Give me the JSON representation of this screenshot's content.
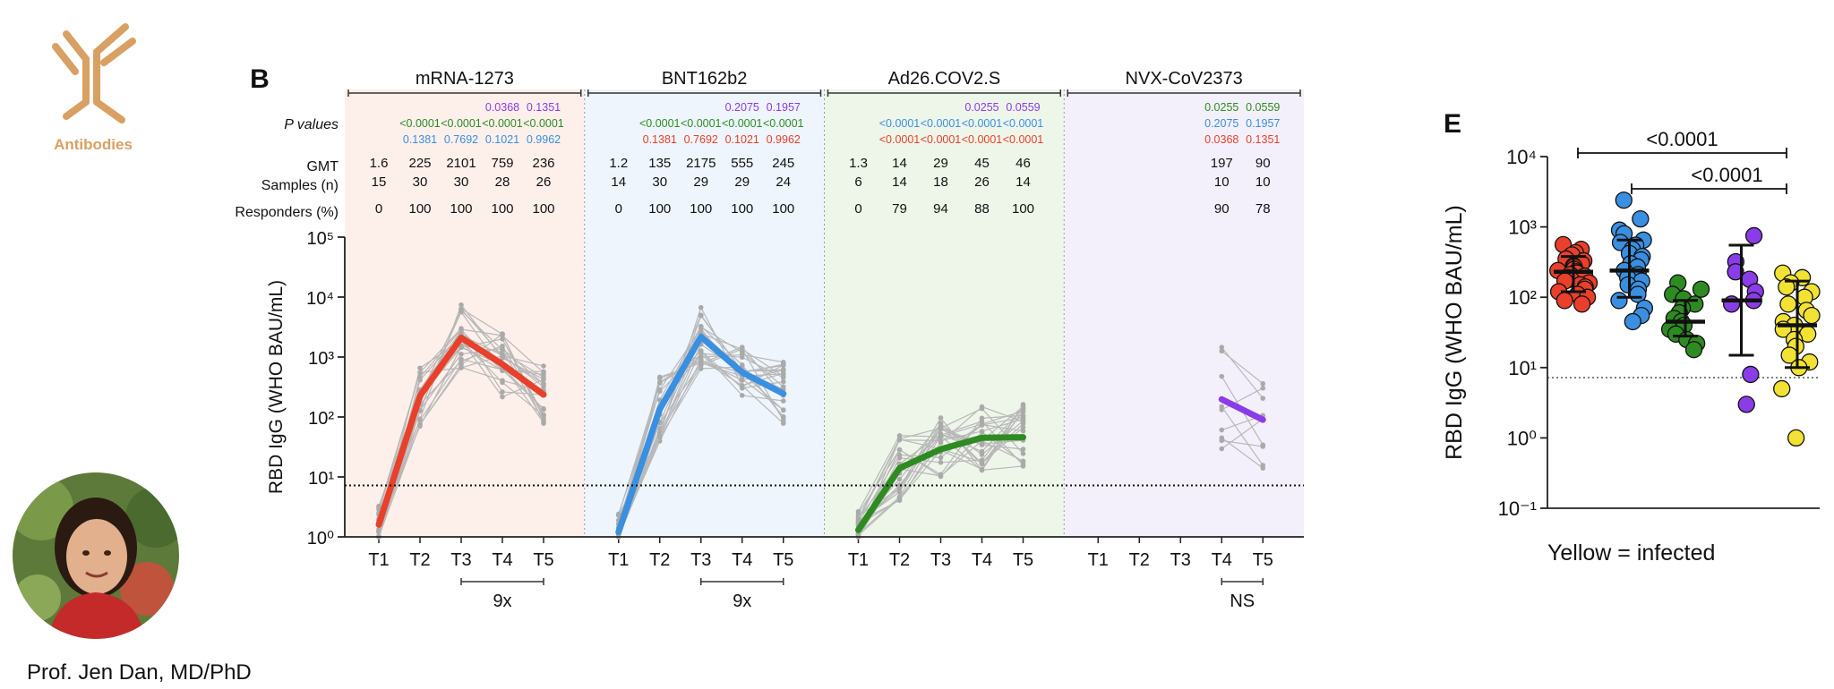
{
  "branding": {
    "logo_icon": "antibody-icon",
    "logo_label": "Antibodies",
    "logo_color": "#d8a063",
    "person_name": "Prof. Jen Dan, MD/PhD"
  },
  "chart_data": [
    {
      "type": "line",
      "panel_label": "B",
      "ylabel": "RBD IgG (WHO BAU/mL)",
      "yscale": "log",
      "ylim": [
        1,
        100000
      ],
      "ytick_labels": [
        "10⁰",
        "10¹",
        "10²",
        "10³",
        "10⁴",
        "10⁵"
      ],
      "threshold": 7.2,
      "row_labels": [
        "P values",
        "GMT",
        "Samples (n)",
        "Responders (%)"
      ],
      "individual_line_color": "#b8b8b8",
      "groups": [
        {
          "name": "mRNA-1273",
          "color": "#e8402a",
          "bg_color": "#fdf0eb",
          "timepoints": [
            "T1",
            "T2",
            "T3",
            "T4",
            "T5"
          ],
          "gmt_display": [
            "1.6",
            "225",
            "2101",
            "759",
            "236"
          ],
          "gmt": [
            1.6,
            225,
            2101,
            759,
            236
          ],
          "samples": [
            "15",
            "30",
            "30",
            "28",
            "26"
          ],
          "responders": [
            "0",
            "100",
            "100",
            "100",
            "100"
          ],
          "p_values": [
            {
              "color": "#8a3ce8",
              "values": [
                "",
                "",
                "",
                "0.0368",
                "0.1351"
              ]
            },
            {
              "color": "#2e8b22",
              "values": [
                "",
                "<0.0001",
                "<0.0001",
                "<0.0001",
                "<0.0001"
              ]
            },
            {
              "color": "#3a8fe0",
              "values": [
                "",
                "0.1381",
                "0.7692",
                "0.1021",
                "0.9962"
              ]
            }
          ],
          "fold_change": {
            "label": "9x",
            "from": "T3",
            "to": "T5"
          }
        },
        {
          "name": "BNT162b2",
          "color": "#3a8fe0",
          "bg_color": "#eef5fc",
          "timepoints": [
            "T1",
            "T2",
            "T3",
            "T4",
            "T5"
          ],
          "gmt_display": [
            "1.2",
            "135",
            "2175",
            "555",
            "245"
          ],
          "gmt": [
            1.2,
            135,
            2175,
            555,
            245
          ],
          "samples": [
            "14",
            "30",
            "29",
            "29",
            "24"
          ],
          "responders": [
            "0",
            "100",
            "100",
            "100",
            "100"
          ],
          "p_values": [
            {
              "color": "#8a3ce8",
              "values": [
                "",
                "",
                "",
                "0.2075",
                "0.1957"
              ]
            },
            {
              "color": "#2e8b22",
              "values": [
                "",
                "<0.0001",
                "<0.0001",
                "<0.0001",
                "<0.0001"
              ]
            },
            {
              "color": "#e8402a",
              "values": [
                "",
                "0.1381",
                "0.7692",
                "0.1021",
                "0.9962"
              ]
            }
          ],
          "fold_change": {
            "label": "9x",
            "from": "T3",
            "to": "T5"
          }
        },
        {
          "name": "Ad26.COV2.S",
          "color": "#2e8b22",
          "bg_color": "#eef6ea",
          "timepoints": [
            "T1",
            "T2",
            "T3",
            "T4",
            "T5"
          ],
          "gmt_display": [
            "1.3",
            "14",
            "29",
            "45",
            "46"
          ],
          "gmt": [
            1.3,
            14,
            29,
            45,
            46
          ],
          "samples": [
            "6",
            "14",
            "18",
            "26",
            "14"
          ],
          "responders": [
            "0",
            "79",
            "94",
            "88",
            "100"
          ],
          "p_values": [
            {
              "color": "#8a3ce8",
              "values": [
                "",
                "",
                "",
                "0.0255",
                "0.0559"
              ]
            },
            {
              "color": "#3a8fe0",
              "values": [
                "",
                "<0.0001",
                "<0.0001",
                "<0.0001",
                "<0.0001"
              ]
            },
            {
              "color": "#e8402a",
              "values": [
                "",
                "<0.0001",
                "<0.0001",
                "<0.0001",
                "<0.0001"
              ]
            }
          ]
        },
        {
          "name": "NVX-CoV2373",
          "color": "#8a3ce8",
          "bg_color": "#f4f0fb",
          "timepoints": [
            "T1",
            "T2",
            "T3",
            "T4",
            "T5"
          ],
          "gmt_display": [
            "",
            "",
            "",
            "197",
            "90"
          ],
          "gmt": [
            null,
            null,
            null,
            197,
            90
          ],
          "samples": [
            "",
            "",
            "",
            "10",
            "10"
          ],
          "responders": [
            "",
            "",
            "",
            "90",
            "78"
          ],
          "p_values": [
            {
              "color": "#2e8b22",
              "values": [
                "",
                "",
                "",
                "0.0255",
                "0.0559"
              ]
            },
            {
              "color": "#3a8fe0",
              "values": [
                "",
                "",
                "",
                "0.2075",
                "0.1957"
              ]
            },
            {
              "color": "#e8402a",
              "values": [
                "",
                "",
                "",
                "0.0368",
                "0.1351"
              ]
            }
          ],
          "fold_change": {
            "label": "NS",
            "from": "T4",
            "to": "T5"
          }
        }
      ]
    },
    {
      "type": "scatter",
      "panel_label": "E",
      "ylabel": "RBD IgG (WHO BAU/mL)",
      "yscale": "log",
      "ylim": [
        0.1,
        10000
      ],
      "ytick_labels": [
        "10⁻¹",
        "10⁰",
        "10¹",
        "10²",
        "10³",
        "10⁴"
      ],
      "threshold": 7.2,
      "legend_note": "Yellow = infected",
      "comparisons": [
        {
          "label": "<0.0001",
          "from_group": 0,
          "to_group": 5
        },
        {
          "label": "<0.0001",
          "from_group": 1,
          "to_group": 5
        }
      ],
      "groups": [
        {
          "color": "#e8402a",
          "median": 230,
          "error": [
            120,
            380
          ],
          "points": [
            560,
            480,
            430,
            400,
            350,
            330,
            300,
            280,
            270,
            250,
            240,
            230,
            220,
            210,
            200,
            190,
            180,
            170,
            160,
            150,
            140,
            130,
            120,
            110,
            100,
            90,
            80
          ]
        },
        {
          "color": "#3a8fe0",
          "median": 240,
          "error": [
            100,
            650
          ],
          "points": [
            2400,
            1300,
            900,
            800,
            650,
            600,
            550,
            480,
            420,
            380,
            340,
            300,
            270,
            240,
            210,
            190,
            170,
            150,
            130,
            110,
            90,
            70,
            55,
            45
          ]
        },
        {
          "color": "#2e8b22",
          "median": 45,
          "error": [
            28,
            90
          ],
          "points": [
            160,
            130,
            110,
            95,
            80,
            70,
            60,
            50,
            45,
            40,
            35,
            30,
            25,
            22,
            18
          ]
        },
        {
          "color": "#8a3ce8",
          "median": 90,
          "error": [
            15,
            550
          ],
          "points": [
            750,
            320,
            230,
            180,
            120,
            90,
            80,
            8,
            3
          ]
        },
        {
          "color": "#f2e233",
          "median": 40,
          "error": [
            10,
            170
          ],
          "points": [
            220,
            190,
            160,
            140,
            120,
            100,
            80,
            65,
            55,
            45,
            40,
            35,
            30,
            25,
            20,
            15,
            12,
            10,
            5,
            1
          ]
        }
      ]
    }
  ]
}
